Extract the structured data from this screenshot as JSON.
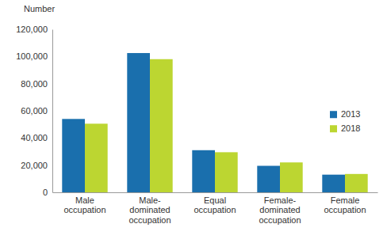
{
  "chart_data": {
    "type": "bar",
    "ylabel": "Number",
    "categories": [
      "Male occupation",
      "Male-dominated occupation",
      "Equal occupation",
      "Female-dominated occupation",
      "Female occupation"
    ],
    "series": [
      {
        "name": "2013",
        "color": "#1a6fad",
        "values": [
          54000,
          102500,
          31000,
          19500,
          13000
        ]
      },
      {
        "name": "2018",
        "color": "#bcd631",
        "values": [
          50500,
          98000,
          29500,
          22000,
          13500
        ]
      }
    ],
    "ylim": [
      0,
      120000
    ],
    "yticks": [
      0,
      {
        "value": 20000,
        "label": "20,000"
      },
      {
        "value": 40000,
        "label": "40,000"
      },
      {
        "value": 60000,
        "label": "60,000"
      },
      {
        "value": 80000,
        "label": "80,000"
      },
      {
        "value": 100000,
        "label": "100,000"
      },
      {
        "value": 120000,
        "label": "120,000"
      }
    ],
    "grid": false,
    "legend": "right"
  }
}
